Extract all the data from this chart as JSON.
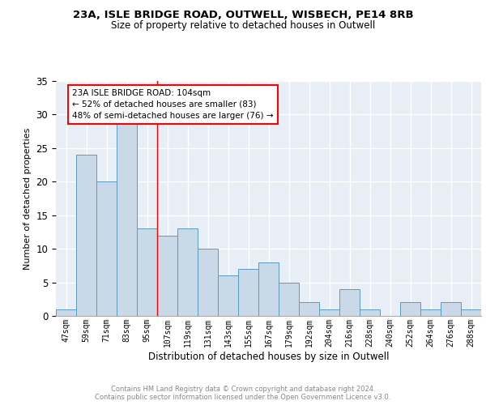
{
  "title1": "23A, ISLE BRIDGE ROAD, OUTWELL, WISBECH, PE14 8RB",
  "title2": "Size of property relative to detached houses in Outwell",
  "xlabel": "Distribution of detached houses by size in Outwell",
  "ylabel": "Number of detached properties",
  "bin_labels": [
    "47sqm",
    "59sqm",
    "71sqm",
    "83sqm",
    "95sqm",
    "107sqm",
    "119sqm",
    "131sqm",
    "143sqm",
    "155sqm",
    "167sqm",
    "179sqm",
    "192sqm",
    "204sqm",
    "216sqm",
    "228sqm",
    "240sqm",
    "252sqm",
    "264sqm",
    "276sqm",
    "288sqm"
  ],
  "bar_values": [
    1,
    24,
    20,
    29,
    13,
    12,
    13,
    10,
    6,
    7,
    8,
    5,
    2,
    1,
    4,
    1,
    0,
    2,
    1,
    2,
    1
  ],
  "bar_color": "#c9d9e8",
  "bar_edge_color": "#5a9bbf",
  "vline_x": 4.5,
  "vline_color": "red",
  "annotation_text": "23A ISLE BRIDGE ROAD: 104sqm\n← 52% of detached houses are smaller (83)\n48% of semi-detached houses are larger (76) →",
  "annotation_box_color": "white",
  "annotation_box_edge": "red",
  "ylim": [
    0,
    35
  ],
  "yticks": [
    0,
    5,
    10,
    15,
    20,
    25,
    30,
    35
  ],
  "footer": "Contains HM Land Registry data © Crown copyright and database right 2024.\nContains public sector information licensed under the Open Government Licence v3.0.",
  "bg_color": "#e8eef5",
  "grid_color": "white"
}
